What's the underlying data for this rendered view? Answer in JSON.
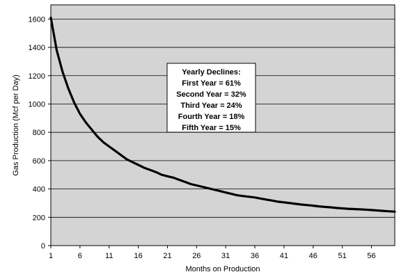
{
  "chart_data": {
    "type": "line",
    "title": "",
    "xlabel": "Months on Production",
    "ylabel": "Gas Production (Mcf per Day)",
    "xlim": [
      1,
      60
    ],
    "ylim": [
      0,
      1700
    ],
    "x_ticks": [
      1,
      6,
      11,
      16,
      21,
      26,
      31,
      36,
      41,
      46,
      51,
      56
    ],
    "y_ticks": [
      0,
      200,
      400,
      600,
      800,
      1000,
      1200,
      1400,
      1600
    ],
    "grid": "horizontal",
    "background": "#d4d4d4",
    "line_color": "#000000",
    "series": [
      {
        "name": "",
        "x": [
          1,
          2,
          3,
          4,
          5,
          6,
          7,
          8,
          9,
          10,
          11,
          12,
          13,
          14,
          15,
          16,
          17,
          18,
          19,
          20,
          21,
          22,
          23,
          24,
          25,
          26,
          27,
          28,
          29,
          30,
          31,
          32,
          33,
          34,
          35,
          36,
          37,
          38,
          39,
          40,
          41,
          42,
          43,
          44,
          45,
          46,
          47,
          48,
          49,
          50,
          51,
          52,
          53,
          54,
          55,
          56,
          57,
          58,
          59,
          60
        ],
        "values": [
          1610,
          1380,
          1230,
          1110,
          1010,
          930,
          870,
          820,
          770,
          730,
          700,
          670,
          640,
          610,
          590,
          570,
          550,
          535,
          520,
          500,
          490,
          480,
          465,
          450,
          435,
          425,
          415,
          405,
          395,
          385,
          375,
          365,
          355,
          350,
          345,
          340,
          332,
          325,
          318,
          310,
          305,
          300,
          295,
          290,
          286,
          282,
          277,
          273,
          270,
          266,
          263,
          260,
          258,
          256,
          254,
          251,
          248,
          245,
          242,
          240
        ]
      }
    ],
    "annotation": {
      "lines": [
        "Yearly Declines:",
        "First Year = 61%",
        "Second Year =  32%",
        "Third Year = 24%",
        "Fourth Year = 18%",
        "Fifth Year = 15%"
      ]
    }
  }
}
